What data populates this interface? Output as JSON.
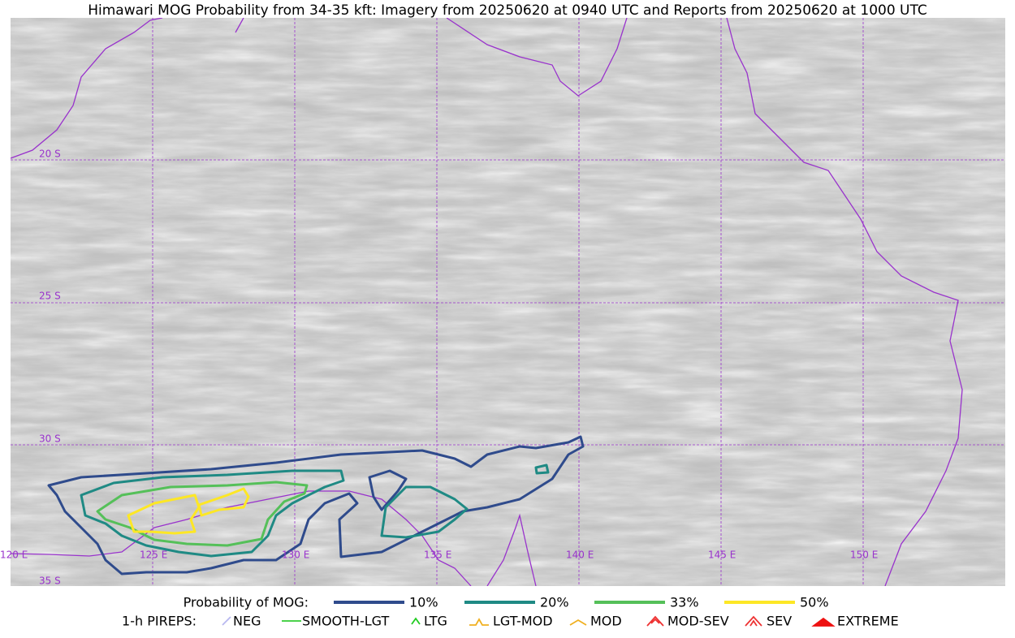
{
  "title": "Himawari MOG Probability from 34-35 kft: Imagery from 20250620 at 0940 UTC and Reports from 20250620 at 1000 UTC",
  "lat_labels": [
    "20 S",
    "25 S",
    "30 S",
    "35 S"
  ],
  "lon_labels": [
    "120 E",
    "125 E",
    "130 E",
    "135 E",
    "140 E",
    "145 E",
    "150 E"
  ],
  "mog_legend": {
    "title": "Probability of MOG:",
    "entries": [
      {
        "label": "10%",
        "color": "#2f4b8c"
      },
      {
        "label": "20%",
        "color": "#1f8a84"
      },
      {
        "label": "33%",
        "color": "#55c059"
      },
      {
        "label": "50%",
        "color": "#fde725"
      }
    ]
  },
  "pirep_legend": {
    "title": "1-h PIREPS:",
    "entries": [
      {
        "label": "NEG",
        "color": "#b8b8f0"
      },
      {
        "label": "SMOOTH-LGT",
        "color": "#33cc33"
      },
      {
        "label": "LTG",
        "color": "#22cc22"
      },
      {
        "label": "LGT-MOD",
        "color": "#f0b020"
      },
      {
        "label": "MOD",
        "color": "#f0b020"
      },
      {
        "label": "MOD-SEV",
        "color": "#ee3333"
      },
      {
        "label": "SEV",
        "color": "#ee3333"
      },
      {
        "label": "EXTREME",
        "color": "#ee1111"
      }
    ]
  }
}
